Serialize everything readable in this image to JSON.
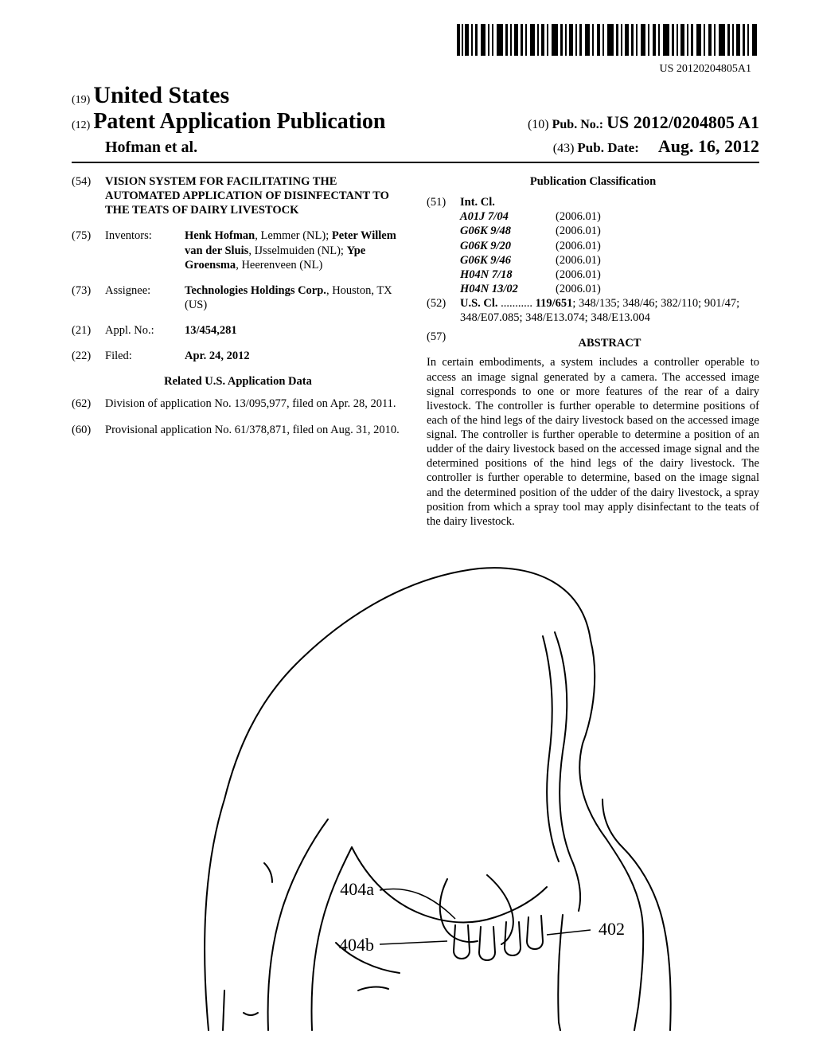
{
  "barcode": {
    "label": "US 20120204805A1"
  },
  "header": {
    "country_code": "(19)",
    "country": "United States",
    "pub_code": "(12)",
    "pub_type": "Patent Application Publication",
    "pubno_code": "(10)",
    "pubno_label": "Pub. No.:",
    "pubno": "US 2012/0204805 A1",
    "authors": "Hofman et al.",
    "date_code": "(43)",
    "date_label": "Pub. Date:",
    "date": "Aug. 16, 2012"
  },
  "left": {
    "title_code": "(54)",
    "title": "VISION SYSTEM FOR FACILITATING THE AUTOMATED APPLICATION OF DISINFECTANT TO THE TEATS OF DAIRY LIVESTOCK",
    "inventors_code": "(75)",
    "inventors_label": "Inventors:",
    "inventors_html": "<b>Henk Hofman</b>, Lemmer (NL); <b>Peter Willem van der Sluis</b>, IJsselmuiden (NL); <b>Ype Groensma</b>, Heerenveen (NL)",
    "assignee_code": "(73)",
    "assignee_label": "Assignee:",
    "assignee_name": "Technologies Holdings Corp.",
    "assignee_loc": "Houston, TX (US)",
    "appl_code": "(21)",
    "appl_label": "Appl. No.:",
    "appl_no": "13/454,281",
    "filed_code": "(22)",
    "filed_label": "Filed:",
    "filed": "Apr. 24, 2012",
    "related_header": "Related U.S. Application Data",
    "div_code": "(62)",
    "div_text": "Division of application No. 13/095,977, filed on Apr. 28, 2011.",
    "prov_code": "(60)",
    "prov_text": "Provisional application No. 61/378,871, filed on Aug. 31, 2010."
  },
  "right": {
    "class_header": "Publication Classification",
    "intcl_code": "(51)",
    "intcl_label": "Int. Cl.",
    "intcl": [
      {
        "sym": "A01J 7/04",
        "ver": "(2006.01)"
      },
      {
        "sym": "G06K 9/48",
        "ver": "(2006.01)"
      },
      {
        "sym": "G06K 9/20",
        "ver": "(2006.01)"
      },
      {
        "sym": "G06K 9/46",
        "ver": "(2006.01)"
      },
      {
        "sym": "H04N 7/18",
        "ver": "(2006.01)"
      },
      {
        "sym": "H04N 13/02",
        "ver": "(2006.01)"
      }
    ],
    "uscl_code": "(52)",
    "uscl_label": "U.S. Cl.",
    "uscl_lead": "119/651",
    "uscl_rest": "; 348/135; 348/46; 382/110; 901/47; 348/E07.085; 348/E13.074; 348/E13.004",
    "abstract_code": "(57)",
    "abstract_header": "ABSTRACT",
    "abstract": "In certain embodiments, a system includes a controller operable to access an image signal generated by a camera. The accessed image signal corresponds to one or more features of the rear of a dairy livestock. The controller is further operable to determine positions of each of the hind legs of the dairy livestock based on the accessed image signal. The controller is further operable to determine a position of an udder of the dairy livestock based on the accessed image signal and the determined positions of the hind legs of the dairy livestock. The controller is further operable to determine, based on the image signal and the determined position of the udder of the dairy livestock, a spray position from which a spray tool may apply disinfectant to the teats of the dairy livestock."
  },
  "figure": {
    "labels": {
      "ref402": "402",
      "ref404a": "404a",
      "ref404b": "404b"
    }
  }
}
